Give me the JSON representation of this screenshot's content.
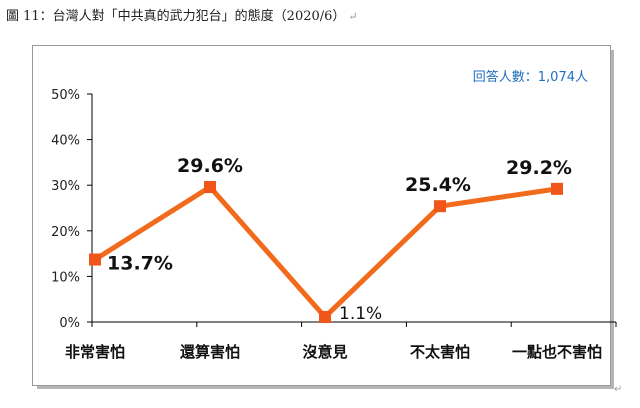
{
  "header": {
    "title": "圖 11：台灣人對「中共真的武力犯台」的態度（2020/6）",
    "para_mark": "↵"
  },
  "respondents_label": "回答人數：1,074人",
  "colors": {
    "line": "#f26b1d",
    "marker": "#f0551a",
    "axis": "#000000",
    "respondents": "#1f6fbf"
  },
  "chart_data": {
    "type": "line",
    "categories": [
      "非常害怕",
      "還算害怕",
      "沒意見",
      "不太害怕",
      "一點也不害怕"
    ],
    "series": [
      {
        "values": [
          13.7,
          29.6,
          1.1,
          25.4,
          29.2
        ]
      }
    ],
    "data_labels": [
      "13.7%",
      "29.6%",
      "1.1%",
      "25.4%",
      "29.2%"
    ],
    "y_ticks": [
      "0%",
      "10%",
      "20%",
      "30%",
      "40%",
      "50%"
    ],
    "ylim": [
      0,
      50
    ],
    "grid": false,
    "legend": "none"
  }
}
